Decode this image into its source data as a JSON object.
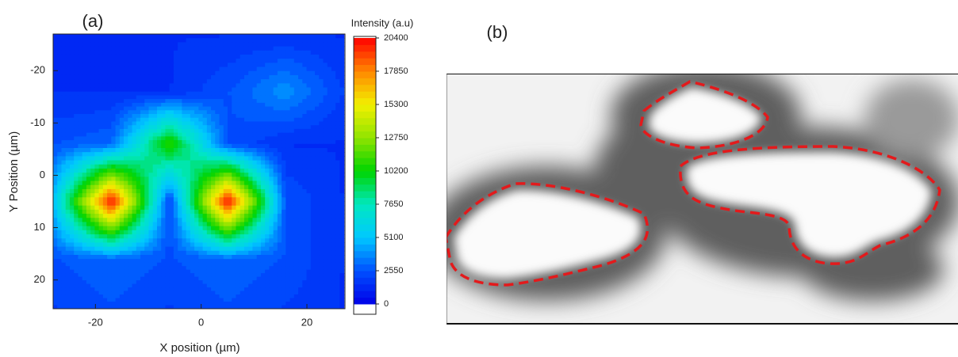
{
  "chart_data": [
    {
      "type": "contour",
      "label": "(a)",
      "xlabel": "X position (µm)",
      "ylabel": "Y Position (µm)",
      "x": [
        -28,
        -17,
        -6,
        5,
        16,
        27
      ],
      "y": [
        -27,
        -16,
        -6,
        5,
        16,
        25.5
      ],
      "z": [
        [
          1500,
          1500,
          1500,
          1500,
          1500,
          1500
        ],
        [
          1500,
          1500,
          1500,
          2500,
          4000,
          2000
        ],
        [
          2500,
          3000,
          11000,
          2500,
          1500,
          1500
        ],
        [
          5000,
          20400,
          2000,
          20400,
          2500,
          1500
        ],
        [
          2500,
          3000,
          2500,
          3000,
          2500,
          1500
        ],
        [
          2000,
          2500,
          2000,
          2500,
          2000,
          1500
        ]
      ],
      "xlim": [
        -28,
        27.2
      ],
      "ylim": [
        -27,
        25.5
      ],
      "xticks": [
        -20,
        0,
        20
      ],
      "yticks": [
        -20,
        -10,
        0,
        10,
        20
      ],
      "colorbar": {
        "title": "Intensity (a.u)",
        "zlim": [
          -790,
          20520
        ],
        "ticks": [
          0,
          2550,
          5100,
          7650,
          10200,
          12750,
          15300,
          17850,
          20400
        ],
        "colors": [
          "#0000e8",
          "#0050ff",
          "#00c8ff",
          "#00e8c0",
          "#00d400",
          "#90e400",
          "#f2f000",
          "#ff8800",
          "#ff0000"
        ]
      }
    },
    {
      "type": "image",
      "label": "(b)"
    }
  ]
}
